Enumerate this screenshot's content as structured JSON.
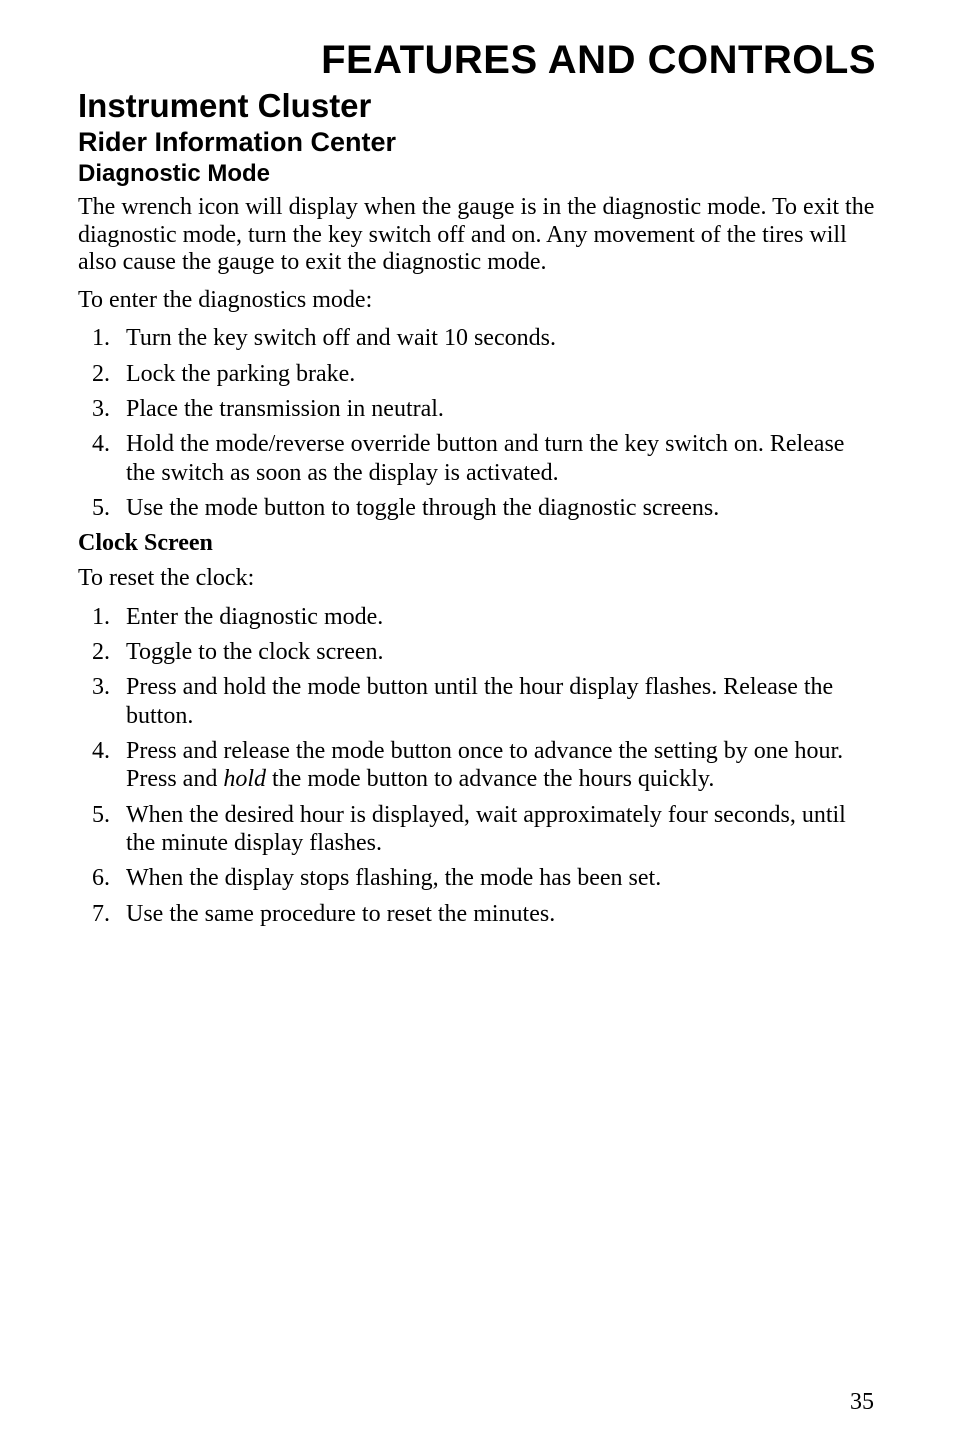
{
  "page": {
    "number": "35",
    "background_color": "#ffffff",
    "text_color": "#000000"
  },
  "headings": {
    "h1": "FEATURES AND CONTROLS",
    "h2": "Instrument Cluster",
    "h3": "Rider Information Center",
    "h4": "Diagnostic Mode"
  },
  "intro_paragraph": "The wrench icon will display when the gauge is in the diagnostic mode. To exit the diagnostic mode, turn the key switch off and on. Any movement of the tires will also cause the gauge to exit the diagnostic mode.",
  "enter_mode_lead": "To enter the diagnostics mode:",
  "enter_mode_steps": [
    "Turn the key switch off and wait 10 seconds.",
    "Lock the parking brake.",
    "Place the transmission in neutral.",
    "Hold the mode/reverse override button and turn the key switch on. Release the switch as soon as the display is activated.",
    "Use the mode button to toggle through the diagnostic screens."
  ],
  "clock_section": {
    "title": "Clock Screen",
    "lead": "To reset the clock:",
    "step1": "Enter the diagnostic mode.",
    "step2": "Toggle to the clock screen.",
    "step3": "Press and hold the mode button until the hour display flashes. Release the button.",
    "step4_a": "Press and release the mode button once to advance the setting by one hour. Press and ",
    "step4_italic": "hold",
    "step4_b": " the mode button to advance the hours quickly.",
    "step5": "When the desired hour is displayed, wait approximately four seconds, until the minute display flashes.",
    "step6": "When the display stops flashing, the mode has been set.",
    "step7": "Use the same procedure to reset the minutes."
  },
  "typography": {
    "h1_fontsize": 40,
    "h2_fontsize": 33,
    "h3_fontsize": 27,
    "h4_fontsize": 24,
    "body_fontsize": 24,
    "heading_font": "Arial",
    "body_font": "Times New Roman"
  }
}
